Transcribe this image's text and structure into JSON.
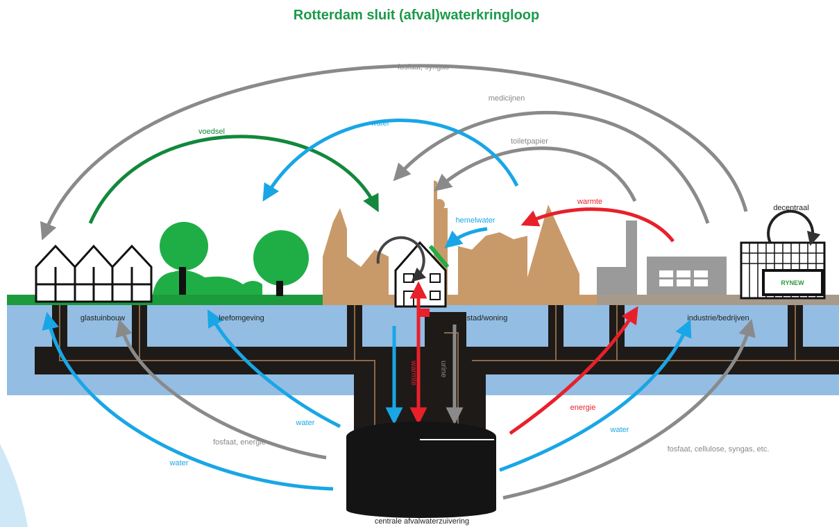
{
  "title": "Rotterdam sluit (afval)waterkringloop",
  "above_ground": {
    "top_flow": "fosfaat, syngas",
    "medicines": "medicijnen",
    "toilet_paper": "toiletpapier",
    "food": "voedsel",
    "water": "water",
    "heat": "warmte",
    "rainwater": "hemelwater",
    "decentral": "decentraal",
    "logo": "RYNEW"
  },
  "sectors": [
    "glastuinbouw",
    "leefomgeving",
    "stad/woning",
    "industrie/bedrijven"
  ],
  "below_ground": {
    "heat_vertical": "warmte",
    "urine_vertical": "urine",
    "energy": "energie",
    "water_right": "water",
    "right_products": "fosfaat, cellulose, syngas, etc.",
    "water_mid_left": "water",
    "left_products": "fosfaat, energie",
    "water_left": "water"
  },
  "plant": "centrale afvalwaterzuivering"
}
